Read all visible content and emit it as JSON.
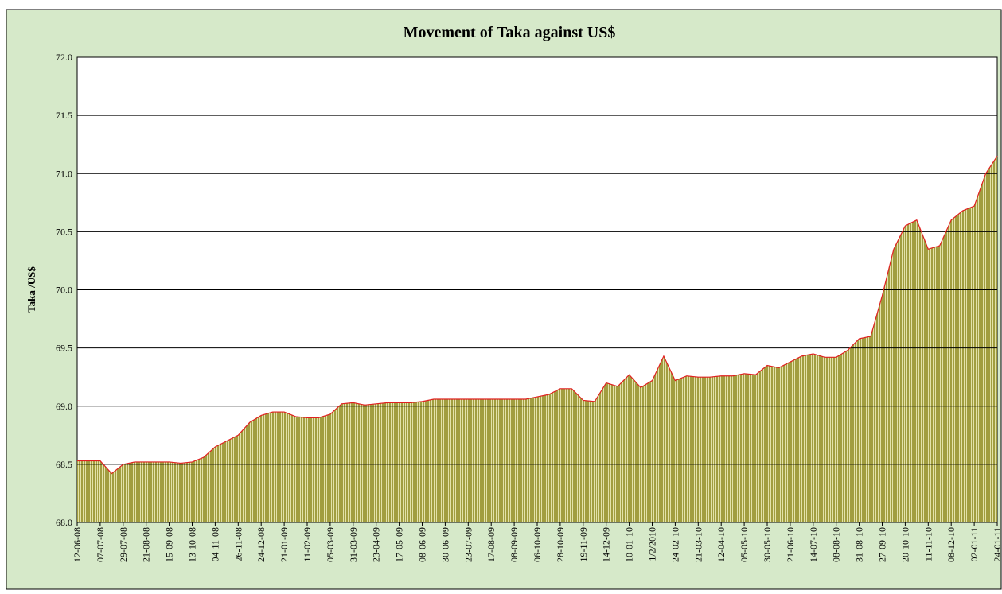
{
  "chart_data": {
    "type": "area",
    "title": "Movement of Taka against US$",
    "y_label": "Taka /US$",
    "categories": [
      "12-06-08",
      null,
      "07-07-08",
      null,
      "29-07-08",
      null,
      "21-08-08",
      null,
      "15-09-08",
      null,
      "13-10-08",
      null,
      "04-11-08",
      null,
      "26-11-08",
      null,
      "24-12-08",
      null,
      "21-01-09",
      null,
      "11-02-09",
      null,
      "05-03-09",
      null,
      "31-03-09",
      null,
      "23-04-09",
      null,
      "17-05-09",
      null,
      "08-06-09",
      null,
      "30-06-09",
      null,
      "23-07-09",
      null,
      "17-08-09",
      null,
      "08-09-09",
      null,
      "06-10-09",
      null,
      "28-10-09",
      null,
      "19-11-09",
      null,
      "14-12-09",
      null,
      "10-01-10",
      null,
      "1/2/2010",
      null,
      "24-02-10",
      null,
      "21-03-10",
      null,
      "12-04-10",
      null,
      "05-05-10",
      null,
      "30-05-10",
      null,
      "21-06-10",
      null,
      "14-07-10",
      null,
      "08-08-10",
      null,
      "31-08-10",
      null,
      "27-09-10",
      null,
      "20-10-10",
      null,
      "11-11-10",
      null,
      "08-12-10",
      null,
      "02-01-11",
      null,
      "24-01-11"
    ],
    "values": [
      68.53,
      68.53,
      68.53,
      68.42,
      68.5,
      68.52,
      68.52,
      68.52,
      68.52,
      68.51,
      68.52,
      68.56,
      68.65,
      68.7,
      68.75,
      68.86,
      68.92,
      68.95,
      68.95,
      68.91,
      68.9,
      68.9,
      68.93,
      69.02,
      69.03,
      69.01,
      69.02,
      69.03,
      69.03,
      69.03,
      69.04,
      69.06,
      69.06,
      69.06,
      69.06,
      69.06,
      69.06,
      69.06,
      69.06,
      69.06,
      69.08,
      69.1,
      69.15,
      69.15,
      69.05,
      69.04,
      69.2,
      69.17,
      69.27,
      69.16,
      69.22,
      69.43,
      69.22,
      69.26,
      69.25,
      69.25,
      69.26,
      69.26,
      69.28,
      69.27,
      69.35,
      69.33,
      69.38,
      69.43,
      69.45,
      69.42,
      69.42,
      69.48,
      69.58,
      69.6,
      69.95,
      70.35,
      70.55,
      70.6,
      70.35,
      70.38,
      70.6,
      70.68,
      70.72,
      71.0,
      71.15
    ],
    "fill_color": "#a19d3f",
    "line_color": "#e02020",
    "ylim": [
      68.0,
      72.0
    ],
    "yticks": [
      {
        "value": 68,
        "label": "68.0"
      },
      68.5,
      {
        "value": 69,
        "label": "69.0"
      },
      69.5,
      {
        "value": 70,
        "label": "70.0"
      },
      70.5,
      {
        "value": 71,
        "label": "71.0"
      },
      71.5,
      {
        "value": 72,
        "label": "72.0"
      }
    ],
    "grid": true
  }
}
